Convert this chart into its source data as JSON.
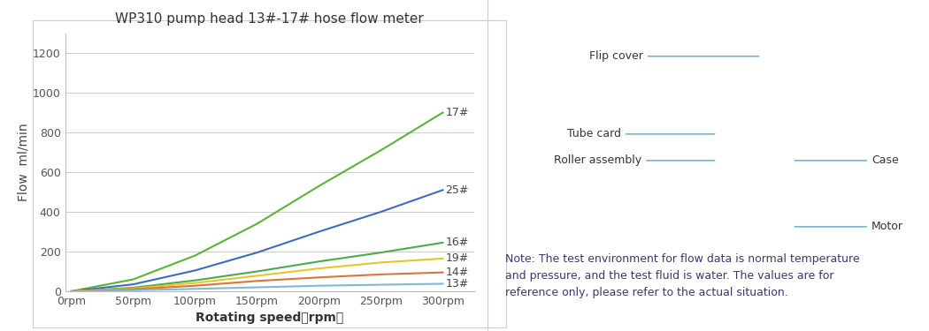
{
  "title": "WP310 pump head 13#-17# hose flow meter",
  "xlabel": "Rotating speed（rpm）",
  "ylabel": "Flow  ml/min",
  "x_ticks": [
    0,
    50,
    100,
    150,
    200,
    250,
    300
  ],
  "x_tick_labels": [
    "0rpm",
    "50rpm",
    "100rpm",
    "150rpm",
    "200rpm",
    "250rpm",
    "300rpm"
  ],
  "ylim": [
    0,
    1300
  ],
  "y_ticks": [
    0,
    200,
    400,
    600,
    800,
    1000,
    1200
  ],
  "series": [
    {
      "label": "17#",
      "color": "#5ab533",
      "x": [
        0,
        50,
        100,
        150,
        200,
        250,
        300
      ],
      "y": [
        0,
        60,
        180,
        340,
        530,
        710,
        900
      ]
    },
    {
      "label": "25#",
      "color": "#3f6bbf",
      "x": [
        0,
        50,
        100,
        150,
        200,
        250,
        300
      ],
      "y": [
        0,
        35,
        105,
        195,
        300,
        400,
        510
      ]
    },
    {
      "label": "16#",
      "color": "#4caa4c",
      "x": [
        0,
        50,
        100,
        150,
        200,
        250,
        300
      ],
      "y": [
        0,
        18,
        55,
        100,
        150,
        195,
        245
      ]
    },
    {
      "label": "19#",
      "color": "#e8c42a",
      "x": [
        0,
        50,
        100,
        150,
        200,
        250,
        300
      ],
      "y": [
        0,
        14,
        42,
        78,
        115,
        145,
        165
      ]
    },
    {
      "label": "14#",
      "color": "#d9743c",
      "x": [
        0,
        50,
        100,
        150,
        200,
        250,
        300
      ],
      "y": [
        0,
        10,
        28,
        52,
        70,
        85,
        95
      ]
    },
    {
      "label": "13#",
      "color": "#7fb8d8",
      "x": [
        0,
        50,
        100,
        150,
        200,
        250,
        300
      ],
      "y": [
        0,
        5,
        12,
        20,
        28,
        33,
        38
      ]
    }
  ],
  "label_color": "#444444",
  "grid_color": "#cccccc",
  "bg_color": "#ffffff",
  "title_fontsize": 11,
  "axis_label_fontsize": 10,
  "tick_fontsize": 9,
  "series_label_fontsize": 9,
  "note_text": "Note: The test environment for flow data is normal temperature\nand pressure, and the test fluid is water. The values are for\nreference only, please refer to the actual situation.",
  "note_color": "#3a3a6a",
  "note_fontsize": 9,
  "line_color": "#55aacc",
  "annot_fontsize": 9,
  "annot_color": "#333333"
}
